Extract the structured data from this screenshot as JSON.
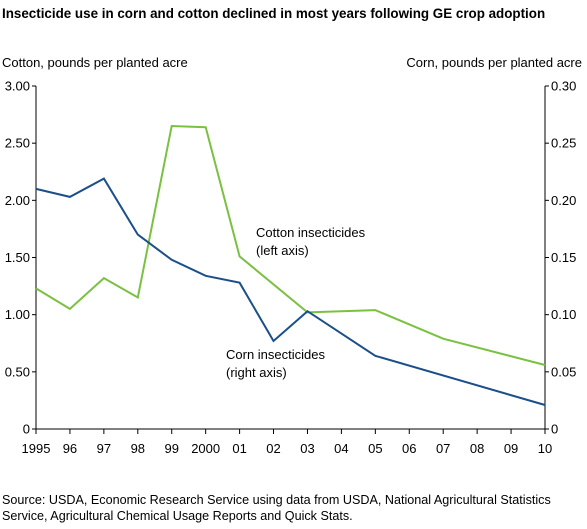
{
  "title": "Insecticide use in corn and cotton declined in most years following GE crop adoption",
  "source": "Source: USDA, Economic Research Service using data from USDA, National Agricultural Statistics Service, Agricultural Chemical Usage Reports and Quick Stats.",
  "colors": {
    "corn": "#1a4f8a",
    "cotton": "#7ac142",
    "axis": "#000000"
  },
  "chart_data": {
    "type": "line",
    "x": [
      1995,
      1996,
      1997,
      1998,
      1999,
      2000,
      2001,
      2002,
      2003,
      2004,
      2005,
      2006,
      2007,
      2008,
      2009,
      2010
    ],
    "x_tick_labels": [
      "1995",
      "96",
      "97",
      "98",
      "99",
      "2000",
      "01",
      "02",
      "03",
      "04",
      "05",
      "06",
      "07",
      "08",
      "09",
      "10"
    ],
    "left_axis": {
      "label": "Cotton, pounds per planted acre",
      "ylim": [
        0,
        3.0
      ],
      "ticks": [
        "0",
        "0.50",
        "1.00",
        "1.50",
        "2.00",
        "2.50",
        "3.00"
      ]
    },
    "right_axis": {
      "label": "Corn, pounds per planted acre",
      "ylim": [
        0,
        0.3
      ],
      "ticks": [
        "0",
        "0.05",
        "0.10",
        "0.15",
        "0.20",
        "0.25",
        "0.30"
      ]
    },
    "grid": false,
    "series": [
      {
        "name": "Cotton insecticides (left axis)",
        "axis": "left",
        "color": "#7ac142",
        "points": [
          [
            1995,
            1.23
          ],
          [
            1996,
            1.05
          ],
          [
            1997,
            1.32
          ],
          [
            1998,
            1.15
          ],
          [
            1999,
            2.65
          ],
          [
            2000,
            2.64
          ],
          [
            2001,
            1.51
          ],
          [
            2003,
            1.02
          ],
          [
            2005,
            1.04
          ],
          [
            2007,
            0.79
          ],
          [
            2010,
            0.56
          ]
        ]
      },
      {
        "name": "Corn insecticides (right axis)",
        "axis": "right",
        "color": "#1a4f8a",
        "points": [
          [
            1995,
            0.21
          ],
          [
            1996,
            0.203
          ],
          [
            1997,
            0.219
          ],
          [
            1998,
            0.17
          ],
          [
            1999,
            0.148
          ],
          [
            2000,
            0.134
          ],
          [
            2001,
            0.128
          ],
          [
            2002,
            0.077
          ],
          [
            2003,
            0.103
          ],
          [
            2005,
            0.064
          ],
          [
            2010,
            0.021
          ]
        ]
      }
    ],
    "annotations": [
      {
        "lines": [
          "Cotton insecticides",
          "(left axis)"
        ],
        "series": "Cotton insecticides (left axis)"
      },
      {
        "lines": [
          "Corn insecticides",
          "(right axis)"
        ],
        "series": "Corn insecticides (right axis)"
      }
    ]
  }
}
